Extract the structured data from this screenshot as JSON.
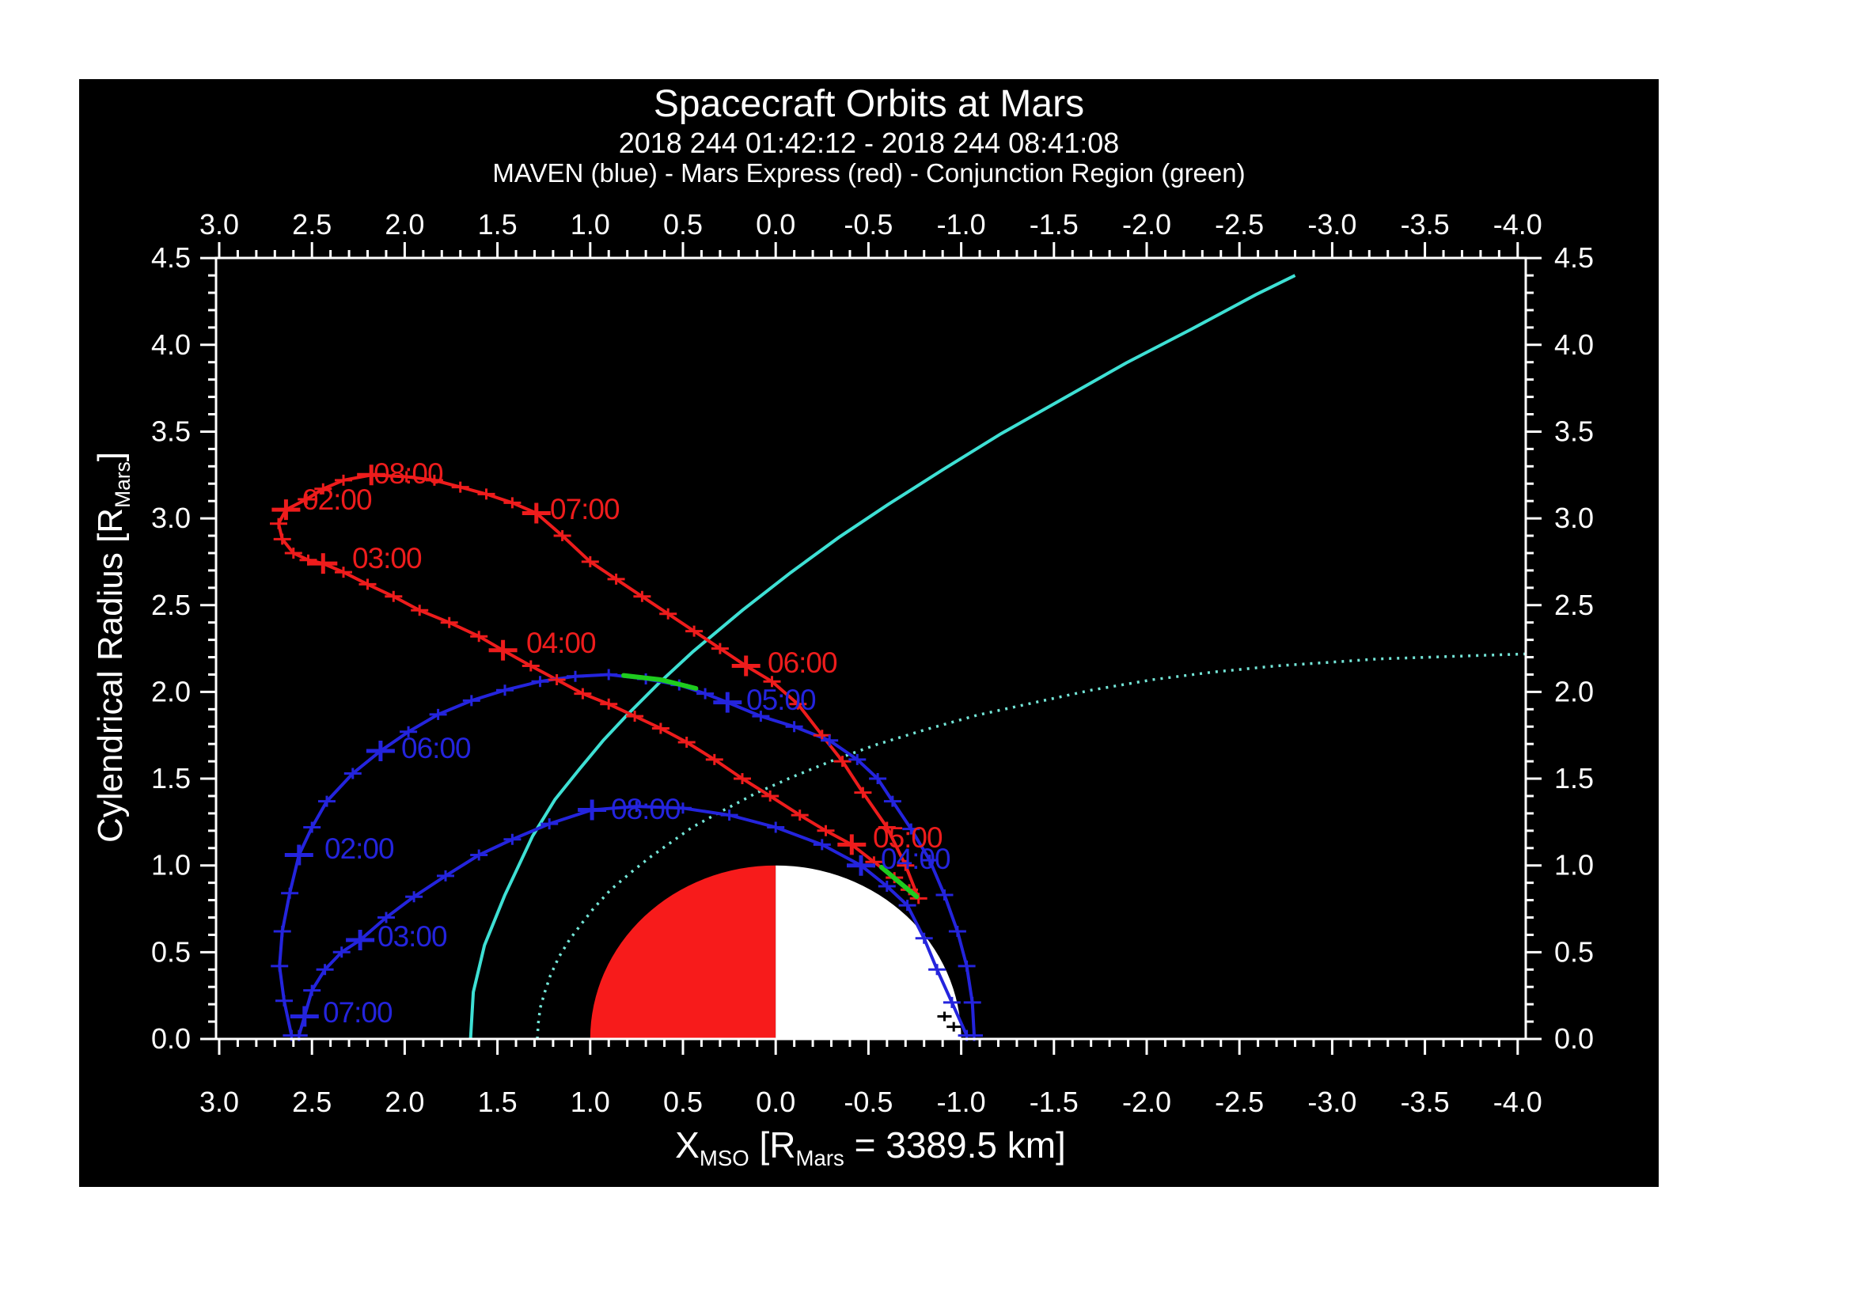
{
  "titles": {
    "main": "Spacecraft Orbits at Mars",
    "sub": "2018 244 01:42:12 - 2018 244 08:41:08",
    "legend": "MAVEN (blue) - Mars Express (red) - Conjunction Region (green)"
  },
  "xaxis": {
    "t1": "X",
    "s1": "MSO",
    "t2": " [R",
    "s2": "Mars",
    "t3": " = 3389.5 km]"
  },
  "yaxis": {
    "t1": "Cylendrical Radius [R",
    "s1": "Mars",
    "t2": "]"
  },
  "colors": {
    "background": "#ffffff",
    "plot_bg": "#000000",
    "axis": "#ffffff",
    "maven_blue": "#2424dd",
    "mex_red": "#ee1c1c",
    "conjunction_green": "#1ecc1e",
    "bowshock_cyan": "#3ee0d4",
    "mpb_cyan": "#74e6d8",
    "mars_day": "#f71b1b",
    "mars_night": "#ffffff",
    "occulted": "#000000"
  },
  "chart_data": {
    "type": "line",
    "title": "Spacecraft Orbits at Mars",
    "xlabel": "X_MSO [R_Mars = 3389.5 km]",
    "ylabel": "Cylendrical Radius [R_Mars]",
    "x_range": [
      3.0,
      -4.0
    ],
    "y_range": [
      0.0,
      4.5
    ],
    "x_major_step": 0.5,
    "x_minor_step": 0.1,
    "y_major_step": 0.5,
    "y_minor_step": 0.1,
    "x_tick_labels": [
      "3.0",
      "2.5",
      "2.0",
      "1.5",
      "1.0",
      "0.5",
      "0.0",
      "-0.5",
      "-1.0",
      "-1.5",
      "-2.0",
      "-2.5",
      "-3.0",
      "-3.5",
      "-4.0"
    ],
    "y_tick_labels": [
      "0.0",
      "0.5",
      "1.0",
      "1.5",
      "2.0",
      "2.5",
      "3.0",
      "3.5",
      "4.0",
      "4.5"
    ],
    "grid": false,
    "mars": {
      "center": [
        0,
        0
      ],
      "radius": 1.0,
      "dayside": "left-red",
      "nightside": "right-white"
    },
    "series": [
      {
        "name": "mars-express-orbit",
        "color_key": "mex_red",
        "closed": true,
        "points": [
          [
            2.64,
            3.05
          ],
          [
            2.68,
            2.97
          ],
          [
            2.66,
            2.88
          ],
          [
            2.6,
            2.8
          ],
          [
            2.52,
            2.76
          ],
          [
            2.44,
            2.74
          ],
          [
            2.33,
            2.69
          ],
          [
            2.2,
            2.62
          ],
          [
            2.06,
            2.55
          ],
          [
            1.92,
            2.47
          ],
          [
            1.76,
            2.4
          ],
          [
            1.6,
            2.32
          ],
          [
            1.47,
            2.24
          ],
          [
            1.32,
            2.15
          ],
          [
            1.18,
            2.07
          ],
          [
            1.04,
            1.99
          ],
          [
            0.9,
            1.93
          ],
          [
            0.76,
            1.86
          ],
          [
            0.62,
            1.79
          ],
          [
            0.48,
            1.71
          ],
          [
            0.33,
            1.61
          ],
          [
            0.18,
            1.5
          ],
          [
            0.03,
            1.4
          ],
          [
            -0.13,
            1.29
          ],
          [
            -0.27,
            1.2
          ],
          [
            -0.41,
            1.12
          ],
          [
            -0.53,
            1.02
          ],
          [
            -0.64,
            0.93
          ],
          [
            -0.72,
            0.86
          ],
          [
            -0.77,
            0.81
          ],
          [
            -0.7,
            1.0
          ],
          [
            -0.6,
            1.22
          ],
          [
            -0.47,
            1.42
          ],
          [
            -0.36,
            1.6
          ],
          [
            -0.25,
            1.75
          ],
          [
            -0.12,
            1.93
          ],
          [
            0.02,
            2.06
          ],
          [
            0.16,
            2.15
          ],
          [
            0.3,
            2.25
          ],
          [
            0.44,
            2.35
          ],
          [
            0.58,
            2.45
          ],
          [
            0.72,
            2.55
          ],
          [
            0.86,
            2.65
          ],
          [
            1.0,
            2.75
          ],
          [
            1.15,
            2.9
          ],
          [
            1.29,
            3.03
          ],
          [
            1.42,
            3.09
          ],
          [
            1.56,
            3.14
          ],
          [
            1.7,
            3.18
          ],
          [
            1.84,
            3.22
          ],
          [
            1.99,
            3.24
          ],
          [
            2.18,
            3.25
          ],
          [
            2.33,
            3.22
          ],
          [
            2.44,
            3.17
          ],
          [
            2.53,
            3.11
          ]
        ]
      },
      {
        "name": "maven-orbit-outer",
        "color_key": "maven_blue",
        "closed": false,
        "points": [
          [
            2.61,
            0.02
          ],
          [
            2.65,
            0.22
          ],
          [
            2.675,
            0.42
          ],
          [
            2.66,
            0.62
          ],
          [
            2.62,
            0.84
          ],
          [
            2.57,
            1.06
          ],
          [
            2.5,
            1.22
          ],
          [
            2.42,
            1.37
          ],
          [
            2.28,
            1.53
          ],
          [
            2.13,
            1.66
          ],
          [
            1.98,
            1.77
          ],
          [
            1.82,
            1.87
          ],
          [
            1.64,
            1.95
          ],
          [
            1.46,
            2.01
          ],
          [
            1.27,
            2.06
          ],
          [
            1.08,
            2.09
          ],
          [
            0.9,
            2.1
          ],
          [
            0.7,
            2.075
          ],
          [
            0.52,
            2.04
          ],
          [
            0.38,
            1.99
          ],
          [
            0.26,
            1.94
          ],
          [
            0.08,
            1.86
          ],
          [
            -0.1,
            1.8
          ],
          [
            -0.29,
            1.72
          ],
          [
            -0.44,
            1.61
          ],
          [
            -0.55,
            1.5
          ],
          [
            -0.63,
            1.37
          ],
          [
            -0.73,
            1.21
          ],
          [
            -0.83,
            1.03
          ],
          [
            -0.91,
            0.83
          ],
          [
            -0.98,
            0.62
          ],
          [
            -1.03,
            0.42
          ],
          [
            -1.06,
            0.21
          ],
          [
            -1.07,
            0.02
          ]
        ]
      },
      {
        "name": "maven-orbit-inner",
        "color_key": "maven_blue",
        "closed": false,
        "points": [
          [
            2.57,
            0.02
          ],
          [
            2.54,
            0.13
          ],
          [
            2.5,
            0.28
          ],
          [
            2.43,
            0.4
          ],
          [
            2.34,
            0.5
          ],
          [
            2.24,
            0.57
          ],
          [
            2.1,
            0.7
          ],
          [
            1.95,
            0.82
          ],
          [
            1.78,
            0.94
          ],
          [
            1.6,
            1.06
          ],
          [
            1.42,
            1.15
          ],
          [
            1.22,
            1.24
          ],
          [
            0.99,
            1.32
          ],
          [
            0.75,
            1.34
          ],
          [
            0.5,
            1.33
          ],
          [
            0.25,
            1.29
          ],
          [
            0.0,
            1.22
          ],
          [
            -0.25,
            1.12
          ],
          [
            -0.46,
            1.0
          ],
          [
            -0.6,
            0.88
          ],
          [
            -0.71,
            0.77
          ],
          [
            -0.8,
            0.58
          ],
          [
            -0.87,
            0.4
          ],
          [
            -0.95,
            0.21
          ],
          [
            -1.03,
            0.02
          ]
        ]
      },
      {
        "name": "bow-shock-boundary",
        "color_key": "bowshock_cyan",
        "closed": false,
        "style": "solid",
        "points": [
          [
            1.645,
            0.0
          ],
          [
            1.63,
            0.27
          ],
          [
            1.57,
            0.54
          ],
          [
            1.46,
            0.83
          ],
          [
            1.31,
            1.17
          ],
          [
            1.19,
            1.38
          ],
          [
            1.057,
            1.556
          ],
          [
            0.93,
            1.72
          ],
          [
            0.803,
            1.865
          ],
          [
            0.63,
            2.05
          ],
          [
            0.445,
            2.233
          ],
          [
            0.18,
            2.47
          ],
          [
            -0.08,
            2.687
          ],
          [
            -0.34,
            2.89
          ],
          [
            -0.604,
            3.079
          ],
          [
            -0.9,
            3.28
          ],
          [
            -1.215,
            3.488
          ],
          [
            -1.55,
            3.69
          ],
          [
            -1.89,
            3.896
          ],
          [
            -2.24,
            4.09
          ],
          [
            -2.59,
            4.29
          ],
          [
            -2.8,
            4.4
          ]
        ]
      },
      {
        "name": "mpb-boundary-dotted",
        "color_key": "mpb_cyan",
        "closed": false,
        "style": "dotted",
        "points": [
          [
            1.285,
            0.0
          ],
          [
            1.28,
            0.09
          ],
          [
            1.269,
            0.18
          ],
          [
            1.245,
            0.27
          ],
          [
            1.215,
            0.365
          ],
          [
            1.17,
            0.47
          ],
          [
            1.111,
            0.573
          ],
          [
            1.05,
            0.66
          ],
          [
            0.982,
            0.752
          ],
          [
            0.89,
            0.86
          ],
          [
            0.78,
            0.96
          ],
          [
            0.68,
            1.045
          ],
          [
            0.582,
            1.12
          ],
          [
            0.45,
            1.22
          ],
          [
            0.306,
            1.304
          ],
          [
            0.1,
            1.42
          ],
          [
            -0.093,
            1.511
          ],
          [
            -0.32,
            1.61
          ],
          [
            -0.546,
            1.697
          ],
          [
            -0.8,
            1.78
          ],
          [
            -1.086,
            1.866
          ],
          [
            -1.4,
            1.94
          ],
          [
            -1.7,
            2.01
          ],
          [
            -2.03,
            2.07
          ],
          [
            -2.355,
            2.114
          ],
          [
            -2.7,
            2.15
          ],
          [
            -2.98,
            2.17
          ],
          [
            -3.25,
            2.19
          ],
          [
            -3.53,
            2.2
          ],
          [
            -3.8,
            2.21
          ],
          [
            -4.07,
            2.22
          ]
        ]
      },
      {
        "name": "conjunction-segment-upper",
        "color_key": "conjunction_green",
        "closed": false,
        "points": [
          [
            0.82,
            2.095
          ],
          [
            0.62,
            2.07
          ],
          [
            0.43,
            2.02
          ]
        ]
      },
      {
        "name": "conjunction-segment-periapsis",
        "color_key": "conjunction_green",
        "closed": false,
        "points": [
          [
            -0.57,
            0.99
          ],
          [
            -0.67,
            0.9
          ],
          [
            -0.76,
            0.82
          ]
        ]
      }
    ],
    "hour_annotations": {
      "mars_express": [
        {
          "t": "02:00",
          "series": 0,
          "idx": 0,
          "lbl": [
            282,
            531
          ]
        },
        {
          "t": "03:00",
          "series": 0,
          "idx": 5,
          "lbl": [
            345,
            605
          ]
        },
        {
          "t": "04:00",
          "series": 0,
          "idx": 12,
          "lbl": [
            565,
            712
          ]
        },
        {
          "t": "05:00",
          "series": 0,
          "idx": 25,
          "lbl": [
            1003,
            958
          ]
        },
        {
          "t": "06:00",
          "series": 0,
          "idx": 37,
          "lbl": [
            870,
            737
          ]
        },
        {
          "t": "07:00",
          "series": 0,
          "idx": 45,
          "lbl": [
            595,
            543
          ]
        },
        {
          "t": "08:00",
          "series": 0,
          "idx": 51,
          "lbl": [
            372,
            498
          ]
        }
      ],
      "maven": [
        {
          "t": "02:00",
          "series": 1,
          "idx": 5,
          "lbl": [
            310,
            972
          ]
        },
        {
          "t": "06:00",
          "series": 1,
          "idx": 9,
          "lbl": [
            407,
            845
          ]
        },
        {
          "t": "05:00",
          "series": 1,
          "idx": 20,
          "lbl": [
            843,
            784
          ]
        },
        {
          "t": "07:00",
          "series": 2,
          "idx": 1,
          "lbl": [
            308,
            1179
          ]
        },
        {
          "t": "03:00",
          "series": 2,
          "idx": 5,
          "lbl": [
            377,
            1083
          ]
        },
        {
          "t": "08:00",
          "series": 2,
          "idx": 12,
          "lbl": [
            672,
            922
          ]
        },
        {
          "t": "04:00",
          "series": 2,
          "idx": 18,
          "lbl": [
            1013,
            985
          ]
        }
      ]
    },
    "occulted_markers": [
      [
        -0.91,
        0.13
      ],
      [
        -0.96,
        0.07
      ]
    ]
  }
}
